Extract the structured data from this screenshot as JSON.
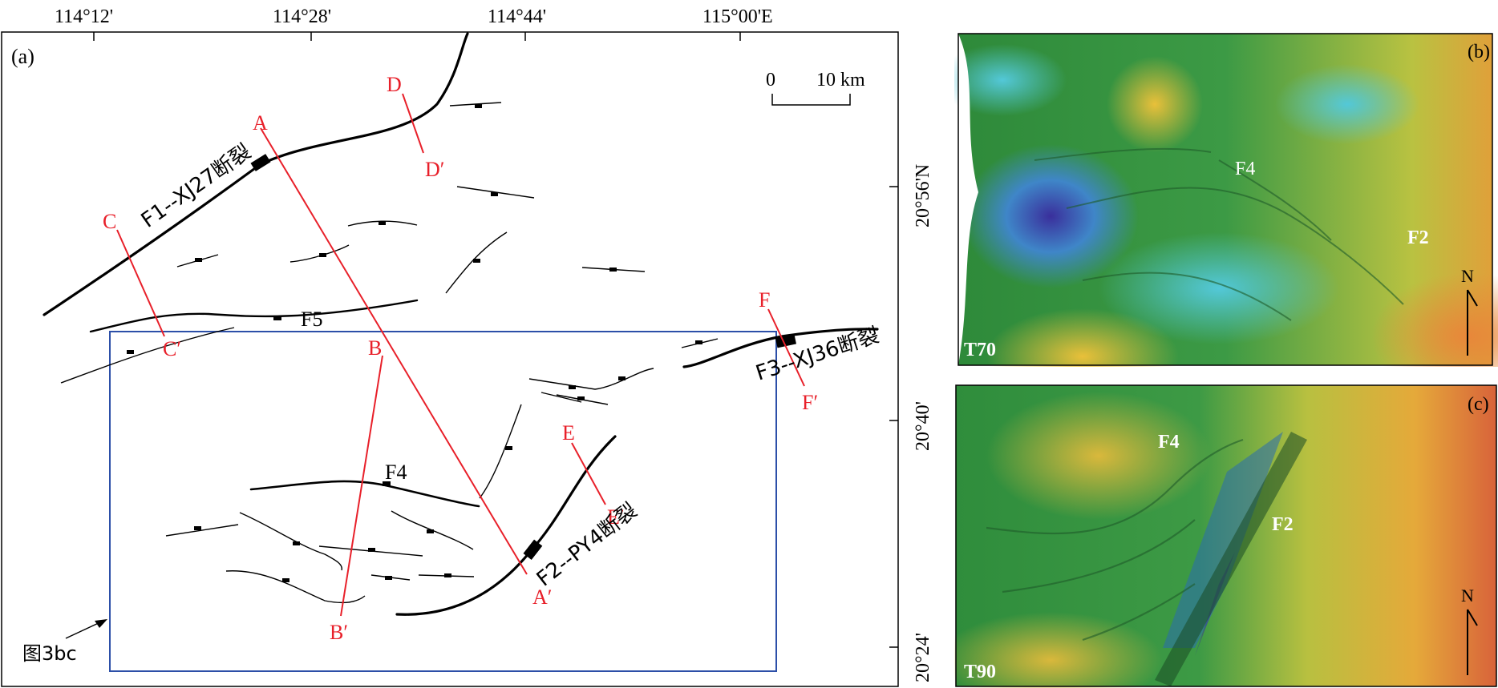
{
  "panel_a": {
    "label": "(a)",
    "lon_ticks": [
      "114°12'",
      "114°28'",
      "114°44'",
      "115°00'E"
    ],
    "lat_ticks": [
      "20°56'N",
      "20°40'",
      "20°24'"
    ],
    "scale_bar": {
      "zero": "0",
      "distance": "10 km"
    },
    "faults": {
      "f1": "F1--XJ27断裂",
      "f2": "F2--PY4断裂",
      "f3": "F3--XJ36断裂",
      "f4": "F4",
      "f5": "F5"
    },
    "profiles": {
      "a_start": "A",
      "a_end": "A′",
      "b_start": "B",
      "b_end": "B′",
      "c_start": "C",
      "c_end": "C′",
      "d_start": "D",
      "d_end": "D′",
      "e_start": "E",
      "e_end": "E′",
      "f_start": "F",
      "f_end": "F′"
    },
    "inset_note": "图3bc",
    "colors": {
      "profile": "#e8202a",
      "inset_box": "#2c4fa8",
      "fault": "#000000"
    }
  },
  "panel_b": {
    "label": "(b)",
    "horizon": "T70",
    "f4": "F4",
    "f2": "F2",
    "north": "N"
  },
  "panel_c": {
    "label": "(c)",
    "horizon": "T90",
    "f4": "F4",
    "f2": "F2",
    "north": "N"
  }
}
